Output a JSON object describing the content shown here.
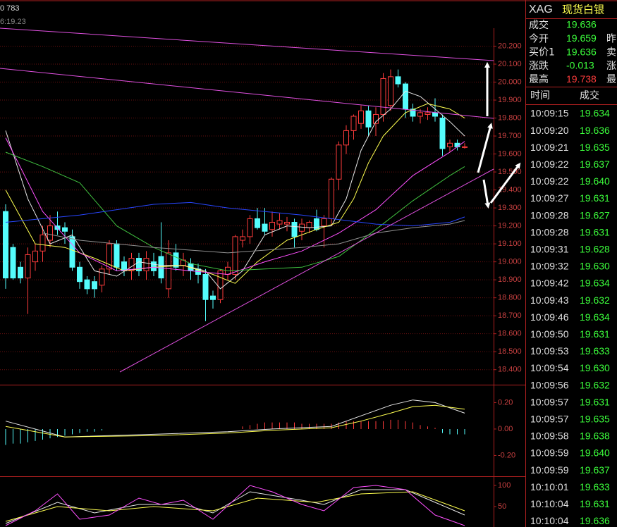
{
  "header": {
    "code": "0 783",
    "time": "6:19.23"
  },
  "chart_data": [
    {
      "type": "candlestick",
      "ylim": [
        18.34,
        20.3
      ],
      "yticks": [
        {
          "value": 20.2,
          "label": "20.200"
        },
        {
          "value": 20.1,
          "label": "20.100"
        },
        {
          "value": 20.0,
          "label": "20.000"
        },
        {
          "value": 19.9,
          "label": "19.900"
        },
        {
          "value": 19.8,
          "label": "19.800"
        },
        {
          "value": 19.7,
          "label": "19.700"
        },
        {
          "value": 19.6,
          "label": "19.600"
        },
        {
          "value": 19.5,
          "label": "19.500"
        },
        {
          "value": 19.4,
          "label": "19.400"
        },
        {
          "value": 19.3,
          "label": "19.300"
        },
        {
          "value": 19.2,
          "label": "19.200"
        },
        {
          "value": 19.1,
          "label": "19.100"
        },
        {
          "value": 19.0,
          "label": "19.000"
        },
        {
          "value": 18.9,
          "label": "18.900"
        },
        {
          "value": 18.8,
          "label": "18.800"
        },
        {
          "value": 18.7,
          "label": "18.700"
        },
        {
          "value": 18.6,
          "label": "18.600"
        },
        {
          "value": 18.5,
          "label": "18.500"
        },
        {
          "value": 18.4,
          "label": "18.400"
        }
      ],
      "grid": true,
      "up_color": "#ff3c3c",
      "down_color": "#54fcfc",
      "open": [
        19.28,
        19.08,
        18.97,
        18.91,
        19.0,
        19.06,
        19.12,
        19.2,
        19.19,
        19.14,
        18.97,
        18.9,
        18.89,
        18.87,
        18.96,
        19.1,
        19.0,
        18.95,
        19.02,
        18.95,
        19.0,
        19.03,
        18.85,
        19.05,
        18.98,
        18.99,
        18.96,
        18.93,
        18.81,
        18.79,
        18.93,
        18.93,
        19.12,
        19.14,
        19.24,
        19.21,
        19.18,
        19.21,
        19.21,
        19.22,
        19.17,
        19.19,
        19.24,
        19.2,
        19.24,
        19.46,
        19.65,
        19.73,
        19.77,
        19.84,
        19.77,
        19.82,
        19.87,
        20.03,
        19.99,
        19.85,
        19.81,
        19.82,
        19.83,
        19.8,
        19.64,
        19.66,
        19.64
      ],
      "high": [
        19.32,
        19.1,
        19.0,
        19.08,
        19.1,
        19.2,
        19.26,
        19.28,
        19.22,
        19.18,
        19.0,
        18.92,
        18.92,
        18.98,
        19.12,
        19.12,
        19.03,
        19.05,
        19.05,
        19.06,
        19.05,
        19.22,
        19.12,
        19.1,
        19.05,
        19.02,
        18.99,
        18.96,
        18.84,
        18.96,
        19.0,
        19.15,
        19.18,
        19.26,
        19.3,
        19.3,
        19.28,
        19.27,
        19.25,
        19.24,
        19.24,
        19.23,
        19.29,
        19.26,
        19.47,
        19.67,
        19.76,
        19.82,
        19.87,
        19.87,
        19.86,
        20.05,
        20.07,
        20.07,
        20.0,
        19.88,
        19.85,
        19.86,
        19.91,
        19.82,
        19.68,
        19.68,
        19.66
      ],
      "low": [
        18.85,
        18.9,
        18.88,
        18.71,
        18.95,
        19.0,
        19.08,
        19.15,
        19.1,
        18.95,
        18.85,
        18.82,
        18.8,
        18.83,
        18.93,
        18.95,
        18.92,
        18.9,
        18.92,
        18.9,
        18.92,
        18.88,
        18.8,
        18.95,
        18.92,
        18.9,
        18.88,
        18.67,
        18.74,
        18.77,
        18.9,
        18.9,
        19.08,
        19.1,
        19.18,
        19.15,
        19.14,
        19.18,
        19.17,
        19.08,
        19.12,
        19.16,
        19.17,
        19.08,
        19.2,
        19.4,
        19.6,
        19.68,
        19.74,
        19.7,
        19.7,
        19.78,
        19.84,
        19.97,
        19.8,
        19.78,
        19.77,
        19.79,
        19.78,
        19.59,
        19.61,
        19.62,
        19.63
      ],
      "close": [
        18.91,
        18.91,
        18.91,
        19.04,
        19.06,
        19.15,
        19.2,
        19.18,
        19.17,
        18.97,
        18.89,
        18.85,
        18.85,
        18.96,
        19.1,
        18.97,
        18.95,
        19.02,
        18.95,
        19.02,
        18.95,
        18.91,
        19.05,
        18.97,
        19.01,
        18.95,
        18.93,
        18.79,
        18.79,
        18.95,
        18.97,
        19.14,
        19.14,
        19.24,
        19.19,
        19.17,
        19.22,
        19.23,
        19.22,
        19.14,
        19.21,
        19.22,
        19.18,
        19.24,
        19.46,
        19.65,
        19.73,
        19.81,
        19.84,
        19.75,
        19.82,
        20.02,
        20.03,
        19.99,
        19.85,
        19.81,
        19.83,
        19.83,
        19.81,
        19.63,
        19.66,
        19.64,
        19.64
      ],
      "series": [
        {
          "color": "#e8e8e8",
          "x": [
            0,
            3,
            6,
            9,
            12,
            15,
            18,
            21,
            24,
            27,
            29,
            32,
            35,
            38,
            41,
            44,
            46,
            48,
            50,
            52,
            54,
            56,
            58,
            60,
            62
          ],
          "values": [
            19.73,
            19.35,
            19.1,
            19.15,
            18.95,
            18.92,
            19.0,
            18.98,
            18.98,
            18.95,
            18.85,
            18.95,
            19.15,
            19.2,
            19.19,
            19.2,
            19.35,
            19.62,
            19.78,
            19.85,
            19.95,
            19.92,
            19.85,
            19.78,
            19.7
          ]
        },
        {
          "color": "#ffff50",
          "x": [
            0,
            4,
            8,
            12,
            16,
            20,
            24,
            28,
            31,
            34,
            38,
            42,
            45,
            47,
            49,
            51,
            54,
            57,
            60,
            62
          ],
          "values": [
            19.4,
            19.1,
            19.08,
            19.02,
            18.95,
            18.97,
            18.98,
            18.93,
            18.88,
            19.0,
            19.12,
            19.18,
            19.22,
            19.35,
            19.55,
            19.7,
            19.83,
            19.88,
            19.85,
            19.8
          ]
        },
        {
          "color": "#ff50ff",
          "x": [
            0,
            5,
            10,
            15,
            20,
            25,
            30,
            35,
            40,
            45,
            50,
            55,
            60,
            62
          ],
          "values": [
            19.69,
            19.28,
            19.05,
            18.95,
            18.97,
            18.95,
            18.93,
            19.0,
            19.06,
            19.16,
            19.29,
            19.48,
            19.61,
            19.67
          ]
        },
        {
          "color": "#40c040",
          "x": [
            0,
            5,
            10,
            15,
            20,
            25,
            30,
            35,
            40,
            45,
            50,
            55,
            60,
            62
          ],
          "values": [
            19.61,
            19.53,
            19.44,
            19.2,
            19.08,
            18.99,
            18.95,
            18.96,
            18.97,
            19.03,
            19.18,
            19.34,
            19.48,
            19.53
          ]
        },
        {
          "color": "#2846ff",
          "x": [
            0,
            10,
            20,
            25,
            30,
            40,
            50,
            55,
            60,
            62
          ],
          "values": [
            19.22,
            19.26,
            19.32,
            19.33,
            19.3,
            19.26,
            19.21,
            19.2,
            19.22,
            19.25
          ]
        },
        {
          "color": "#909090",
          "x": [
            5,
            10,
            20,
            30,
            40,
            45,
            50,
            55,
            60,
            62
          ],
          "values": [
            19.16,
            19.12,
            19.08,
            19.05,
            19.08,
            19.1,
            19.16,
            19.19,
            19.21,
            19.23
          ]
        }
      ]
    },
    {
      "type": "macd",
      "ylim": [
        -0.299,
        0.325
      ],
      "yticks": [
        {
          "value": 0.2,
          "label": "0.20"
        },
        {
          "value": 0,
          "label": "0.00"
        },
        {
          "value": -0.2,
          "label": "-0.20"
        }
      ],
      "up_color": "#ff3c3c",
      "down_color": "#54fcfc",
      "histogram": [
        -0.12,
        -0.11,
        -0.11,
        -0.1,
        -0.09,
        -0.08,
        -0.07,
        -0.06,
        -0.05,
        -0.04,
        -0.03,
        -0.02,
        -0.02,
        -0.01,
        0,
        0,
        0,
        0,
        0,
        0,
        0,
        0,
        0,
        0,
        0,
        0,
        0,
        0,
        0,
        0,
        0,
        0,
        0.02,
        0.03,
        0.04,
        0.05,
        0.05,
        0.05,
        0.05,
        0.05,
        0.04,
        0.04,
        0.04,
        0.04,
        0.04,
        0.05,
        0.06,
        0.06,
        0.06,
        0.06,
        0.06,
        0.06,
        0.07,
        0.07,
        0.06,
        0.05,
        0.03,
        0.02,
        0.01,
        -0.03,
        -0.04,
        -0.04,
        -0.04
      ],
      "series": [
        {
          "color": "#e8e8e8",
          "x": [
            0,
            8,
            20,
            30,
            36,
            44,
            48,
            52,
            55,
            58,
            62
          ],
          "values": [
            0.06,
            -0.06,
            -0.04,
            -0.02,
            0,
            0.02,
            0.1,
            0.18,
            0.22,
            0.2,
            0.12
          ]
        },
        {
          "color": "#ffff50",
          "x": [
            0,
            8,
            20,
            30,
            36,
            44,
            48,
            52,
            55,
            58,
            62
          ],
          "values": [
            0.02,
            -0.06,
            -0.05,
            -0.03,
            -0.01,
            0.01,
            0.06,
            0.12,
            0.17,
            0.18,
            0.15
          ]
        }
      ]
    },
    {
      "type": "line",
      "ylim": [
        1.7,
        118.3
      ],
      "yticks": [
        100,
        50
      ],
      "series": [
        {
          "color": "#e8e8e8",
          "x": [
            0,
            7,
            12,
            18,
            24,
            28,
            33,
            40,
            43,
            48,
            54,
            58,
            62
          ],
          "values": [
            10,
            60,
            35,
            55,
            55,
            35,
            85,
            65,
            55,
            90,
            90,
            60,
            30
          ]
        },
        {
          "color": "#ffff50",
          "x": [
            0,
            7,
            14,
            20,
            28,
            34,
            42,
            48,
            55,
            62
          ],
          "values": [
            15,
            50,
            40,
            50,
            40,
            70,
            60,
            80,
            85,
            40
          ]
        },
        {
          "color": "#ff50ff",
          "x": [
            0,
            4,
            7,
            10,
            14,
            18,
            21,
            24,
            28,
            33,
            36,
            40,
            43,
            47,
            50,
            54,
            58,
            62
          ],
          "values": [
            5,
            40,
            80,
            20,
            30,
            70,
            55,
            65,
            20,
            100,
            85,
            55,
            40,
            95,
            100,
            90,
            30,
            5
          ]
        }
      ]
    }
  ],
  "quote": {
    "symbol": "XAG",
    "name": "现货白银",
    "rows": [
      {
        "label": "成交",
        "value": "19.636",
        "color": "#3cff3c"
      },
      {
        "label": "今开",
        "value": "19.659",
        "color": "#3cff3c",
        "extra": "昨"
      },
      {
        "label": "买价1",
        "value": "19.636",
        "color": "#3cff3c",
        "extra": "卖"
      },
      {
        "label": "涨跌",
        "value": "-0.013",
        "color": "#3cff3c",
        "extra": "涨"
      },
      {
        "label": "最高",
        "value": "19.738",
        "color": "#ff3c3c",
        "extra": "最"
      }
    ]
  },
  "trades": {
    "header": [
      "时间",
      "成交"
    ],
    "color": "#3cff3c",
    "rows": [
      [
        "10:09:15",
        "19.634"
      ],
      [
        "10:09:20",
        "19.636"
      ],
      [
        "10:09:21",
        "19.635"
      ],
      [
        "10:09:22",
        "19.637"
      ],
      [
        "10:09:22",
        "19.640"
      ],
      [
        "10:09:27",
        "19.631"
      ],
      [
        "10:09:28",
        "19.627"
      ],
      [
        "10:09:28",
        "19.631"
      ],
      [
        "10:09:31",
        "19.628"
      ],
      [
        "10:09:32",
        "19.630"
      ],
      [
        "10:09:42",
        "19.634"
      ],
      [
        "10:09:43",
        "19.632"
      ],
      [
        "10:09:46",
        "19.634"
      ],
      [
        "10:09:50",
        "19.631"
      ],
      [
        "10:09:53",
        "19.633"
      ],
      [
        "10:09:54",
        "19.630"
      ],
      [
        "10:09:56",
        "19.632"
      ],
      [
        "10:09:57",
        "19.631"
      ],
      [
        "10:09:57",
        "19.635"
      ],
      [
        "10:09:58",
        "19.638"
      ],
      [
        "10:09:59",
        "19.640"
      ],
      [
        "10:09:59",
        "19.637"
      ],
      [
        "10:10:01",
        "19.633"
      ],
      [
        "10:10:04",
        "19.631"
      ],
      [
        "10:10:04",
        "19.636"
      ]
    ]
  }
}
